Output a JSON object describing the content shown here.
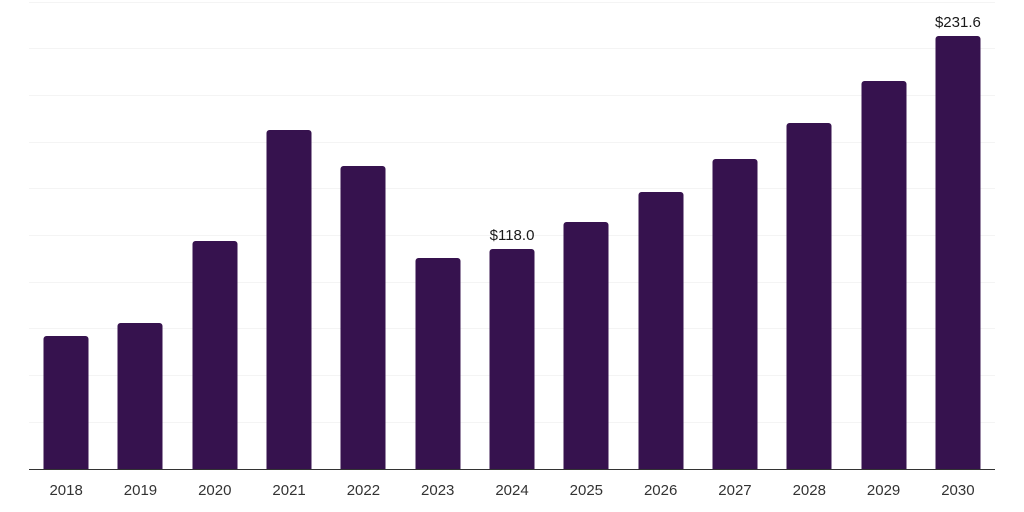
{
  "chart_data": {
    "type": "bar",
    "title": "",
    "xlabel": "",
    "ylabel": "",
    "categories": [
      "2018",
      "2019",
      "2020",
      "2021",
      "2022",
      "2023",
      "2024",
      "2025",
      "2026",
      "2027",
      "2028",
      "2029",
      "2030"
    ],
    "values": [
      71.4,
      77.9,
      121.8,
      181.7,
      162.3,
      112.9,
      118.0,
      132.2,
      148.2,
      166.0,
      185.1,
      207.9,
      231.6
    ],
    "data_labels": [
      "",
      "",
      "",
      "",
      "",
      "",
      "$118.0",
      "",
      "",
      "",
      "",
      "",
      "$231.6"
    ],
    "ylim": [
      0,
      250
    ],
    "y_grid_step": 25,
    "grid": "horizontal",
    "legend": "none",
    "colors": {
      "bar": "#36124E",
      "gridline": "#f4f4f4",
      "axis_line": "#333333",
      "data_label_text": "#1a1a1a",
      "tick_label_text": "#333333",
      "background": "#ffffff"
    }
  }
}
